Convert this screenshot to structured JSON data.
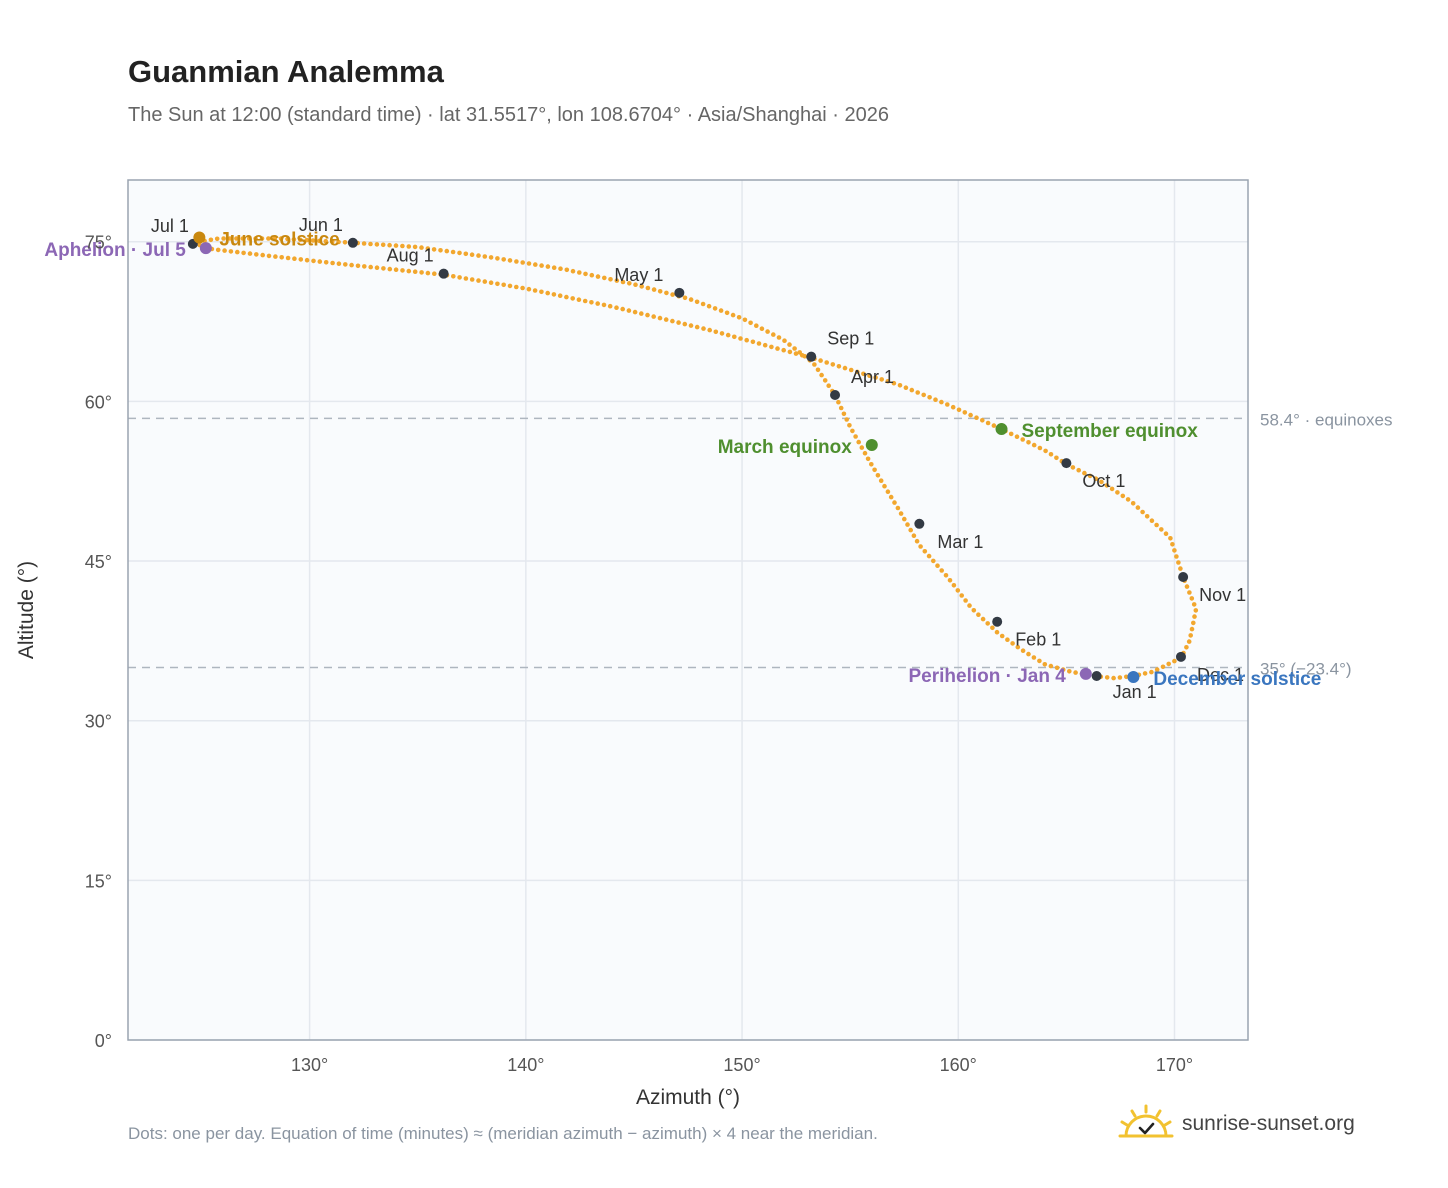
{
  "header": {
    "title": "Guanmian Analemma",
    "subtitle": "The Sun at 12:00 (standard time) · lat 31.5517°, lon 108.6704° · Asia/Shanghai · 2026"
  },
  "footer": {
    "note": "Dots: one per day. Equation of time (minutes) ≈ (meridian azimuth − azimuth) × 4 near the meridian.",
    "brand": "sunrise-sunset.org",
    "brand_icon": "sun-logo-icon"
  },
  "colors": {
    "curve": "#f2a72e",
    "month_dot": "#333a44",
    "equinox": "#4f8f2f",
    "june_solstice": "#c9880f",
    "december_solstice": "#3a76bf",
    "apsis": "#8c67b5",
    "reference_line": "#aeb6bf",
    "plot_background": "#f9fbfd",
    "grid": "#e4e8ee",
    "frame": "#9aa4b0"
  },
  "chart_data": {
    "type": "scatter",
    "xlabel": "Azimuth (°)",
    "ylabel": "Altitude (°)",
    "xlim": [
      121.6,
      173.4
    ],
    "ylim": [
      0,
      80.8
    ],
    "xticks": [
      130,
      140,
      150,
      160,
      170
    ],
    "xtick_labels": [
      "130°",
      "140°",
      "150°",
      "160°",
      "170°"
    ],
    "yticks": [
      0,
      15,
      30,
      45,
      60,
      75
    ],
    "ytick_labels": [
      "0°",
      "15°",
      "30°",
      "45°",
      "60°",
      "75°"
    ],
    "grid": true,
    "reference_lines": [
      {
        "y": 58.4,
        "label": "58.4° · equinoxes"
      },
      {
        "y": 35.0,
        "label": "35° (−23.4°)"
      }
    ],
    "analemma_points": [
      [
        166.3,
        34.2
      ],
      [
        165.2,
        34.6
      ],
      [
        164.0,
        35.3
      ],
      [
        162.9,
        36.7
      ],
      [
        161.8,
        38.3
      ],
      [
        160.6,
        40.6
      ],
      [
        159.5,
        43.5
      ],
      [
        158.2,
        46.5
      ],
      [
        157.2,
        50.0
      ],
      [
        156.0,
        54.0
      ],
      [
        155.0,
        57.6
      ],
      [
        154.3,
        60.6
      ],
      [
        153.3,
        63.6
      ],
      [
        151.9,
        65.8
      ],
      [
        150.0,
        67.8
      ],
      [
        147.6,
        69.6
      ],
      [
        145.0,
        71.0
      ],
      [
        141.8,
        72.4
      ],
      [
        138.5,
        73.5
      ],
      [
        135.0,
        74.5
      ],
      [
        132.0,
        74.9
      ],
      [
        128.6,
        75.3
      ],
      [
        125.8,
        75.3
      ],
      [
        124.6,
        74.9
      ],
      [
        125.5,
        74.3
      ],
      [
        128.0,
        73.7
      ],
      [
        131.5,
        72.9
      ],
      [
        136.2,
        71.9
      ],
      [
        140.0,
        70.6
      ],
      [
        144.0,
        68.9
      ],
      [
        148.5,
        66.7
      ],
      [
        153.2,
        64.1
      ],
      [
        157.2,
        61.6
      ],
      [
        159.5,
        59.7
      ],
      [
        162.0,
        57.4
      ],
      [
        164.0,
        55.4
      ],
      [
        165.0,
        54.1
      ],
      [
        166.5,
        52.6
      ],
      [
        168.0,
        50.6
      ],
      [
        169.8,
        47.2
      ],
      [
        170.4,
        43.5
      ],
      [
        171.0,
        40.5
      ],
      [
        170.7,
        37.5
      ],
      [
        170.3,
        35.9
      ],
      [
        169.0,
        34.6
      ],
      [
        168.1,
        34.2
      ],
      [
        167.2,
        34.0
      ],
      [
        166.3,
        34.2
      ]
    ],
    "month_markers": [
      {
        "label": "Jan 1",
        "x": 166.4,
        "y": 34.2
      },
      {
        "label": "Feb 1",
        "x": 161.8,
        "y": 39.3
      },
      {
        "label": "Mar 1",
        "x": 158.2,
        "y": 48.5
      },
      {
        "label": "Apr 1",
        "x": 154.3,
        "y": 60.6
      },
      {
        "label": "May 1",
        "x": 147.1,
        "y": 70.2
      },
      {
        "label": "Jun 1",
        "x": 132.0,
        "y": 74.9
      },
      {
        "label": "Jul 1",
        "x": 124.6,
        "y": 74.8
      },
      {
        "label": "Aug 1",
        "x": 136.2,
        "y": 72.0
      },
      {
        "label": "Sep 1",
        "x": 153.2,
        "y": 64.2
      },
      {
        "label": "Oct 1",
        "x": 165.0,
        "y": 54.2
      },
      {
        "label": "Nov 1",
        "x": 170.4,
        "y": 43.5
      },
      {
        "label": "Dec 1",
        "x": 170.3,
        "y": 36.0
      }
    ],
    "key_events": [
      {
        "label": "March equinox",
        "x": 156.0,
        "y": 55.9,
        "color": "#4f8f2f",
        "anchor": "end"
      },
      {
        "label": "September equinox",
        "x": 162.0,
        "y": 57.4,
        "color": "#4f8f2f",
        "anchor": "start"
      },
      {
        "label": "June solstice",
        "x": 124.9,
        "y": 75.4,
        "color": "#c9880f",
        "anchor": "start"
      },
      {
        "label": "December solstice",
        "x": 168.1,
        "y": 34.1,
        "color": "#3a76bf",
        "anchor": "start"
      },
      {
        "label": "Aphelion · Jul 5",
        "x": 125.2,
        "y": 74.4,
        "color": "#8c67b5",
        "anchor": "end"
      },
      {
        "label": "Perihelion · Jan 4",
        "x": 165.9,
        "y": 34.4,
        "color": "#8c67b5",
        "anchor": "end"
      }
    ]
  }
}
